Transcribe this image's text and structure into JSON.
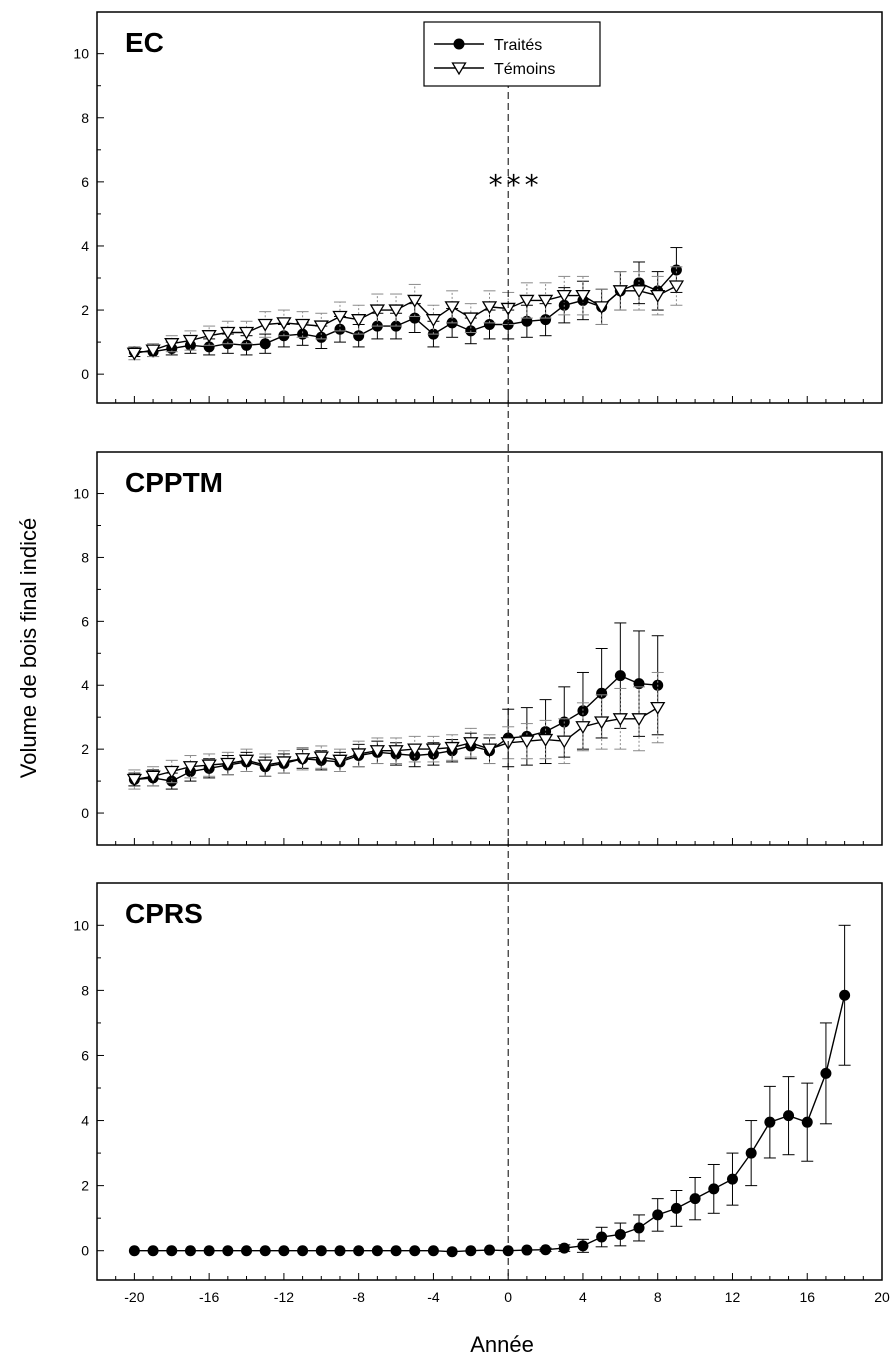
{
  "chart_data": {
    "type": "line",
    "xlabel": "Année",
    "ylabel": "Volume de bois final indicé",
    "xlim": [
      -22,
      20
    ],
    "x_ticks": [
      -20,
      -16,
      -12,
      -8,
      -4,
      0,
      4,
      8,
      12,
      16,
      20
    ],
    "x_tick_labels": [
      "-20",
      "-16",
      "-12",
      "-8",
      "-4",
      "0",
      "4",
      "8",
      "12",
      "16",
      "20"
    ],
    "y_ticks": [
      0,
      2,
      4,
      6,
      8,
      10
    ],
    "y_tick_labels": [
      "0",
      "2",
      "4",
      "6",
      "8",
      "10"
    ],
    "reference_line_x": 0,
    "legend": {
      "placement": "top-center",
      "entries": [
        {
          "label": "Traités",
          "marker": "filled-circle"
        },
        {
          "label": "Témoins",
          "marker": "open-triangle-down"
        }
      ]
    },
    "panels": [
      {
        "title": "EC",
        "ylim": [
          -0.9,
          11.3
        ],
        "annotation": {
          "text": "***",
          "x": 0.4,
          "y": 5.6
        },
        "series": [
          {
            "name": "Traités",
            "x": [
              -20,
              -19,
              -18,
              -17,
              -16,
              -15,
              -14,
              -13,
              -12,
              -11,
              -10,
              -9,
              -8,
              -7,
              -6,
              -5,
              -4,
              -3,
              -2,
              -1,
              0,
              1,
              2,
              3,
              4,
              5,
              6,
              7,
              8,
              9
            ],
            "y": [
              0.7,
              0.7,
              0.8,
              0.9,
              0.85,
              0.95,
              0.9,
              0.95,
              1.2,
              1.25,
              1.15,
              1.4,
              1.2,
              1.5,
              1.5,
              1.75,
              1.25,
              1.6,
              1.35,
              1.55,
              1.55,
              1.65,
              1.7,
              2.15,
              2.3,
              2.1,
              2.6,
              2.85,
              2.6,
              3.25
            ],
            "err": [
              0.15,
              0.15,
              0.2,
              0.25,
              0.25,
              0.3,
              0.3,
              0.3,
              0.35,
              0.35,
              0.35,
              0.4,
              0.35,
              0.4,
              0.4,
              0.45,
              0.4,
              0.45,
              0.4,
              0.45,
              0.45,
              0.5,
              0.5,
              0.55,
              0.6,
              0.55,
              0.6,
              0.65,
              0.6,
              0.7
            ]
          },
          {
            "name": "Témoins",
            "x": [
              -20,
              -19,
              -18,
              -17,
              -16,
              -15,
              -14,
              -13,
              -12,
              -11,
              -10,
              -9,
              -8,
              -7,
              -6,
              -5,
              -4,
              -3,
              -2,
              -1,
              0,
              1,
              2,
              3,
              4,
              5,
              6,
              7,
              8,
              9
            ],
            "y": [
              0.65,
              0.75,
              0.95,
              1.05,
              1.2,
              1.3,
              1.3,
              1.55,
              1.6,
              1.55,
              1.5,
              1.8,
              1.7,
              2.0,
              2.0,
              2.3,
              1.7,
              2.1,
              1.75,
              2.1,
              2.05,
              2.3,
              2.3,
              2.45,
              2.45,
              2.1,
              2.6,
              2.6,
              2.45,
              2.75
            ],
            "err": [
              0.2,
              0.2,
              0.25,
              0.3,
              0.3,
              0.35,
              0.35,
              0.4,
              0.4,
              0.4,
              0.4,
              0.45,
              0.45,
              0.5,
              0.5,
              0.5,
              0.45,
              0.5,
              0.45,
              0.5,
              0.5,
              0.55,
              0.55,
              0.6,
              0.6,
              0.55,
              0.6,
              0.6,
              0.6,
              0.6
            ]
          }
        ]
      },
      {
        "title": "CPPTM",
        "ylim": [
          -1,
          11.3
        ],
        "series": [
          {
            "name": "Traités",
            "x": [
              -20,
              -19,
              -18,
              -17,
              -16,
              -15,
              -14,
              -13,
              -12,
              -11,
              -10,
              -9,
              -8,
              -7,
              -6,
              -5,
              -4,
              -3,
              -2,
              -1,
              0,
              1,
              2,
              3,
              4,
              5,
              6,
              7,
              8
            ],
            "y": [
              1.05,
              1.1,
              1.0,
              1.3,
              1.4,
              1.5,
              1.6,
              1.45,
              1.55,
              1.7,
              1.65,
              1.6,
              1.8,
              1.9,
              1.85,
              1.8,
              1.85,
              1.95,
              2.1,
              1.95,
              2.35,
              2.4,
              2.55,
              2.85,
              3.2,
              3.75,
              4.3,
              4.05,
              4.0
            ],
            "err": [
              0.2,
              0.25,
              0.25,
              0.3,
              0.3,
              0.3,
              0.3,
              0.3,
              0.3,
              0.3,
              0.3,
              0.3,
              0.35,
              0.35,
              0.35,
              0.35,
              0.35,
              0.35,
              0.4,
              0.4,
              0.9,
              0.9,
              1.0,
              1.1,
              1.2,
              1.4,
              1.65,
              1.65,
              1.55
            ]
          },
          {
            "name": "Témoins",
            "x": [
              -20,
              -19,
              -18,
              -17,
              -16,
              -15,
              -14,
              -13,
              -12,
              -11,
              -10,
              -9,
              -8,
              -7,
              -6,
              -5,
              -4,
              -3,
              -2,
              -1,
              0,
              1,
              2,
              3,
              4,
              5,
              6,
              7,
              8
            ],
            "y": [
              1.05,
              1.15,
              1.3,
              1.45,
              1.5,
              1.55,
              1.65,
              1.5,
              1.6,
              1.7,
              1.75,
              1.65,
              1.85,
              1.95,
              1.95,
              2.0,
              2.0,
              2.05,
              2.2,
              2.0,
              2.2,
              2.25,
              2.3,
              2.25,
              2.7,
              2.85,
              2.95,
              2.95,
              3.3
            ],
            "err": [
              0.3,
              0.3,
              0.35,
              0.35,
              0.35,
              0.35,
              0.35,
              0.35,
              0.35,
              0.35,
              0.35,
              0.35,
              0.4,
              0.4,
              0.4,
              0.4,
              0.4,
              0.4,
              0.45,
              0.45,
              0.5,
              0.55,
              0.6,
              0.7,
              0.75,
              0.85,
              0.95,
              1.0,
              1.1
            ]
          }
        ]
      },
      {
        "title": "CPRS",
        "ylim": [
          -0.9,
          11.3
        ],
        "series": [
          {
            "name": "Traités",
            "x": [
              -20,
              -19,
              -18,
              -17,
              -16,
              -15,
              -14,
              -13,
              -12,
              -11,
              -10,
              -9,
              -8,
              -7,
              -6,
              -5,
              -4,
              -3,
              -2,
              -1,
              0,
              1,
              2,
              3,
              4,
              5,
              6,
              7,
              8,
              9,
              10,
              11,
              12,
              13,
              14,
              15,
              16,
              17,
              18
            ],
            "y": [
              0,
              0,
              0,
              0,
              0,
              0,
              0,
              0,
              0,
              0,
              0,
              0,
              0,
              0,
              0,
              0,
              0,
              -0.03,
              0,
              0.02,
              0,
              0.02,
              0.03,
              0.08,
              0.15,
              0.42,
              0.5,
              0.7,
              1.1,
              1.3,
              1.6,
              1.9,
              2.2,
              3.0,
              3.95,
              4.15,
              3.95,
              5.45,
              7.85
            ],
            "err": [
              0,
              0,
              0,
              0,
              0,
              0,
              0,
              0,
              0,
              0,
              0,
              0,
              0,
              0,
              0,
              0,
              0,
              0,
              0,
              0,
              0,
              0,
              0.05,
              0.1,
              0.2,
              0.3,
              0.35,
              0.4,
              0.5,
              0.55,
              0.65,
              0.75,
              0.8,
              1.0,
              1.1,
              1.2,
              1.2,
              1.55,
              2.15
            ]
          }
        ]
      }
    ]
  }
}
